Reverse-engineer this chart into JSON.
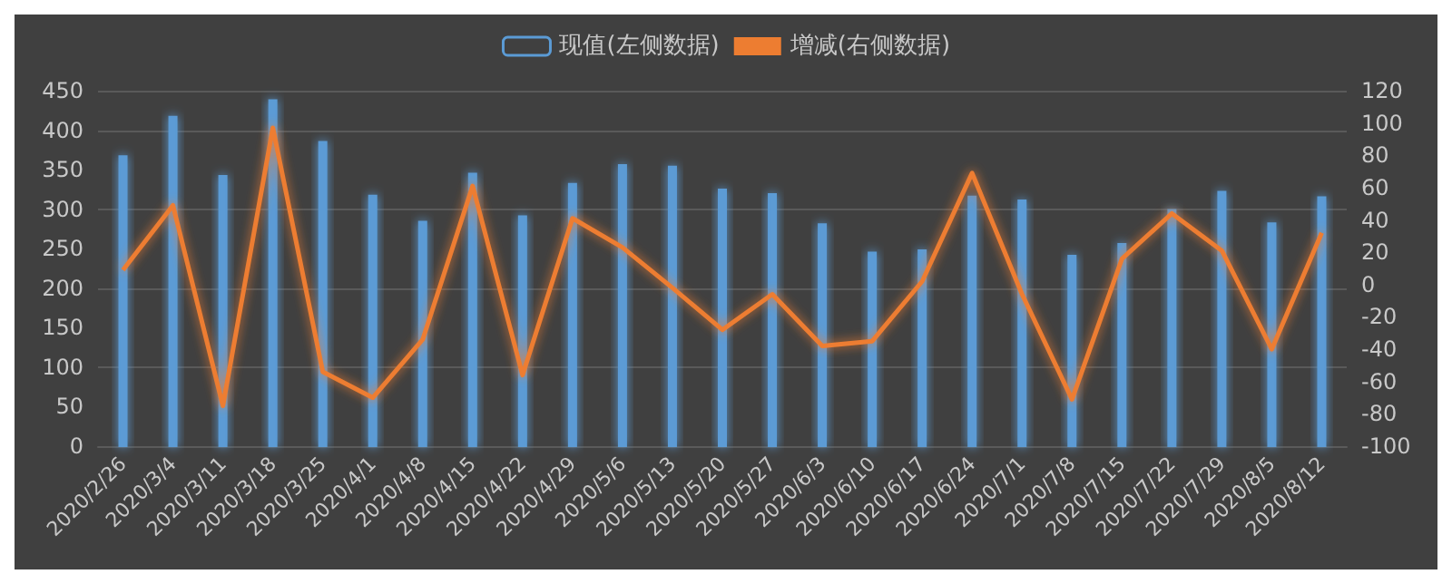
{
  "chart_data": {
    "type": "bar",
    "categories": [
      "2020/2/26",
      "2020/3/4",
      "2020/3/11",
      "2020/3/18",
      "2020/3/25",
      "2020/4/1",
      "2020/4/8",
      "2020/4/15",
      "2020/4/22",
      "2020/4/29",
      "2020/5/6",
      "2020/5/13",
      "2020/5/20",
      "2020/5/27",
      "2020/6/3",
      "2020/6/10",
      "2020/6/17",
      "2020/6/24",
      "2020/7/1",
      "2020/7/8",
      "2020/7/15",
      "2020/7/22",
      "2020/7/29",
      "2020/8/5",
      "2020/8/12"
    ],
    "series": [
      {
        "name": "现值(左侧数据)",
        "color": "#5b9bd5",
        "values": [
          367,
          417,
          342,
          438,
          385,
          317,
          284,
          345,
          291,
          332,
          356,
          354,
          325,
          319,
          281,
          245,
          248,
          316,
          311,
          241,
          256,
          299,
          322,
          282,
          315
        ]
      },
      {
        "name": "增减(右侧数据)",
        "type": "line",
        "axis": "y2",
        "color": "#ed7d31",
        "values": [
          9,
          49,
          -75,
          97,
          -54,
          -70,
          -34,
          61,
          -56,
          41,
          23,
          -2,
          -28,
          -6,
          -38,
          -35,
          2,
          69,
          -6,
          -71,
          16,
          44,
          21,
          -40,
          32
        ]
      }
    ],
    "ylim": [
      0,
      450
    ],
    "yticks": [
      0,
      50,
      100,
      150,
      200,
      250,
      300,
      350,
      400,
      450
    ],
    "y2lim": [
      -100,
      120
    ],
    "y2ticks": [
      -100,
      -80,
      -60,
      -40,
      -20,
      0,
      20,
      40,
      60,
      80,
      100,
      120
    ],
    "grid": "y",
    "legend": "top",
    "marker": "none",
    "line_style": "solid"
  }
}
